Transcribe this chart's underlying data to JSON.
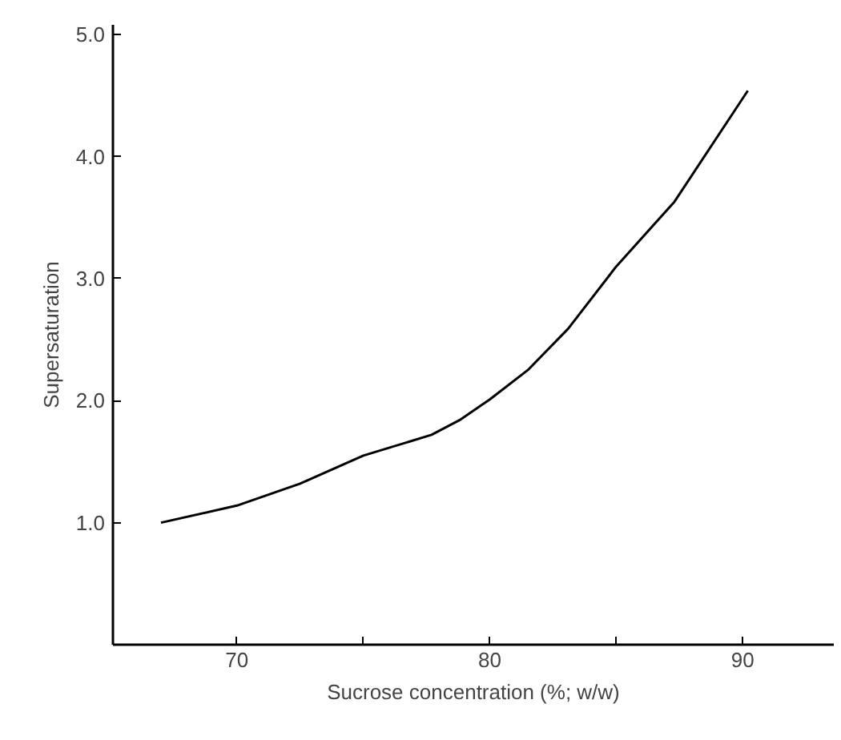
{
  "chart_data": {
    "type": "line",
    "xlabel": "Sucrose concentration (%; w/w)",
    "ylabel": "Supersaturation",
    "x": [
      67.0,
      70.0,
      72.5,
      75.0,
      77.7,
      78.8,
      80.0,
      81.5,
      83.1,
      85.0,
      87.3,
      90.2
    ],
    "series": [
      {
        "color": "#000000",
        "values": [
          1.0,
          1.14,
          1.32,
          1.55,
          1.72,
          1.84,
          2.01,
          2.25,
          2.59,
          3.1,
          3.63,
          4.54
        ]
      }
    ],
    "xlim": [
      65.1,
      93.6
    ],
    "ylim": [
      0,
      5.08
    ],
    "xticks": [
      70,
      {
        "value": 75,
        "label": null
      },
      80,
      {
        "value": 85,
        "label": null
      },
      90
    ],
    "yticks": [
      {
        "value": 1,
        "label": "1.0"
      },
      {
        "value": 2,
        "label": "2.0"
      },
      {
        "value": 3,
        "label": "3.0"
      },
      {
        "value": 4,
        "label": "4.0"
      },
      {
        "value": 5,
        "label": "5.0"
      }
    ],
    "grid": false,
    "marker": "none",
    "line_style": "solid"
  }
}
